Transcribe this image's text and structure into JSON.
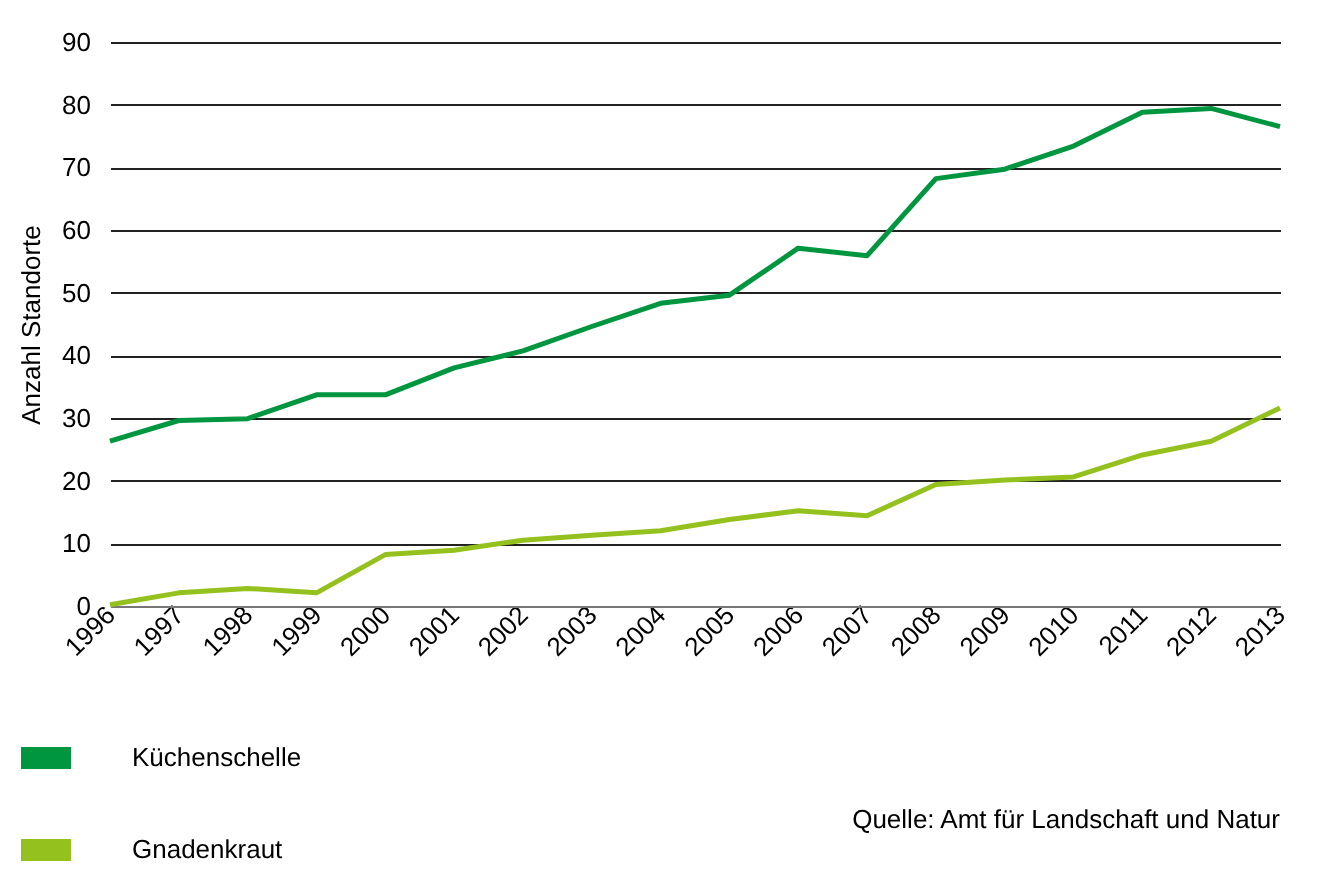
{
  "chart_data": {
    "type": "line",
    "ylabel": "Anzahl Standorte",
    "categories": [
      "1996",
      "1997",
      "1998",
      "1999",
      "2000",
      "2001",
      "2002",
      "2003",
      "2004",
      "2005",
      "2006",
      "2007",
      "2008",
      "2009",
      "2010",
      "2011",
      "2012",
      "2013"
    ],
    "series": [
      {
        "name": "Küchenschelle",
        "color": "#009640",
        "values": [
          26.3,
          29.6,
          29.9,
          33.7,
          33.7,
          38,
          40.7,
          44.6,
          48.3,
          49.6,
          57.1,
          55.9,
          68.2,
          69.7,
          73.4,
          78.8,
          79.4,
          76.5
        ]
      },
      {
        "name": "Gnadenkraut",
        "color": "#95c11f",
        "values": [
          0.2,
          2.1,
          2.8,
          2.1,
          8.2,
          8.9,
          10.5,
          11.3,
          12.0,
          13.8,
          15.2,
          14.4,
          19.4,
          20.1,
          20.6,
          24.1,
          26.3,
          31.6
        ]
      }
    ],
    "ylim": [
      0,
      90
    ],
    "yticks": [
      0,
      10,
      20,
      30,
      40,
      50,
      60,
      70,
      80,
      90
    ],
    "grid": "y",
    "legend": "bottom left",
    "marker": "none",
    "line_style": "solid",
    "annotations": [
      "Quelle: Amt für Landschaft und Natur"
    ]
  }
}
